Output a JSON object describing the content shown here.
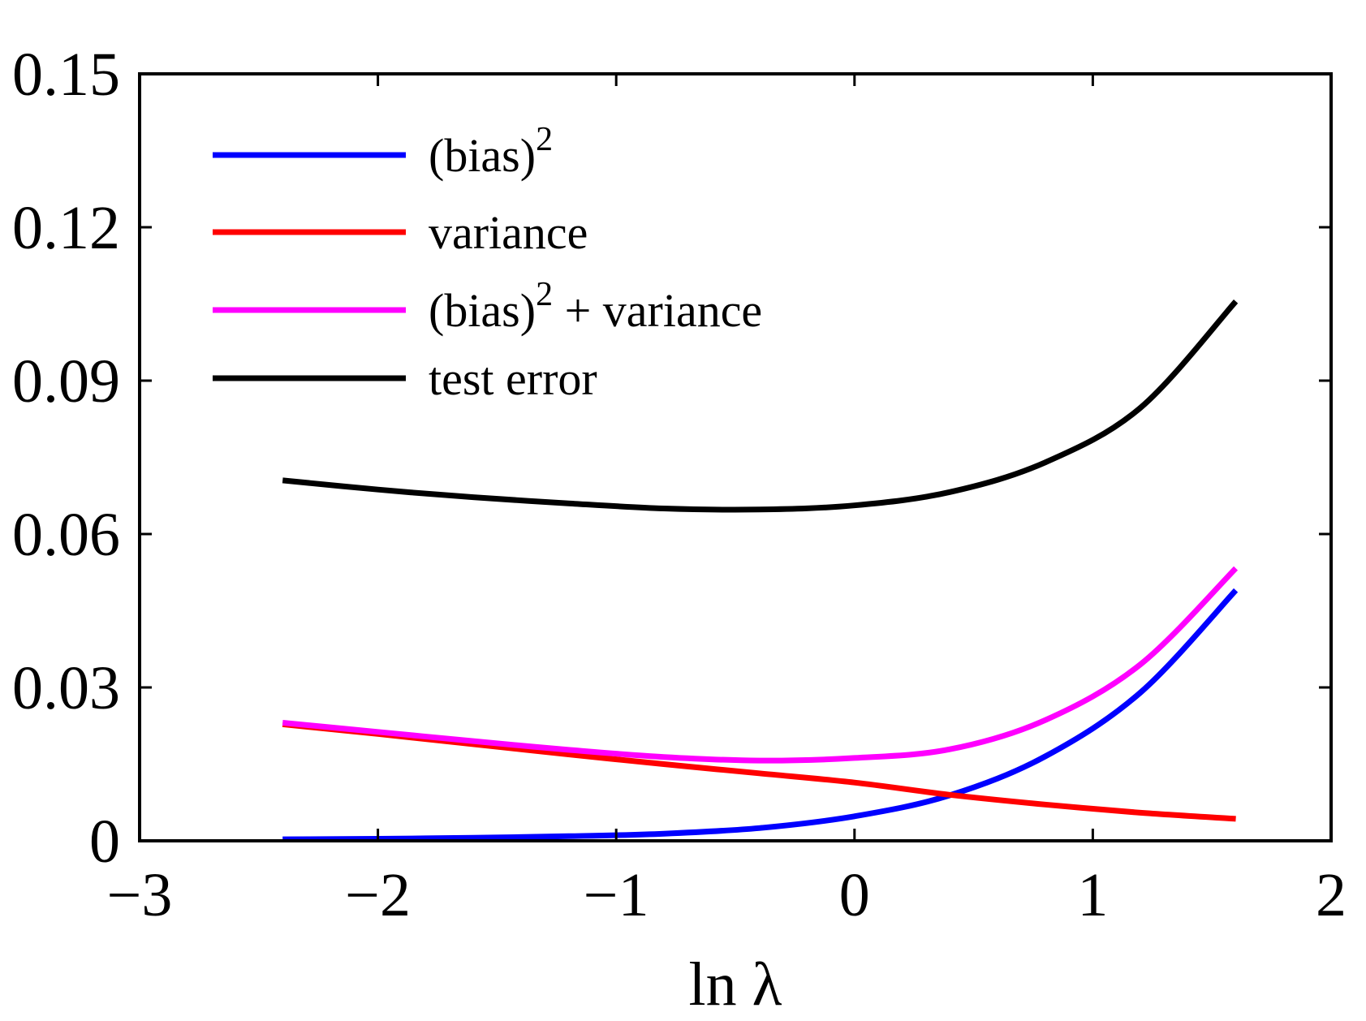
{
  "chart_data": {
    "type": "line",
    "title": "",
    "xlabel": "ln λ",
    "ylabel": "",
    "xlim": [
      -3,
      2
    ],
    "ylim": [
      0,
      0.15
    ],
    "xticks": [
      -3,
      -2,
      -1,
      0,
      1,
      2
    ],
    "xtick_labels": [
      "−3",
      "−2",
      "−1",
      "0",
      "1",
      "2"
    ],
    "yticks": [
      0,
      0.03,
      0.06,
      0.09,
      0.12,
      0.15
    ],
    "ytick_labels": [
      "0",
      "0.03",
      "0.06",
      "0.09",
      "0.12",
      "0.15"
    ],
    "grid": false,
    "legend_position": "top-left",
    "legend": [
      {
        "base": "(bias)",
        "sup": "2",
        "rest": "",
        "color": "#0000ff"
      },
      {
        "base": "variance",
        "sup": "",
        "rest": "",
        "color": "#ff0000"
      },
      {
        "base": "(bias)",
        "sup": "2",
        "rest": " + variance",
        "color": "#ff00ff"
      },
      {
        "base": "test error",
        "sup": "",
        "rest": "",
        "color": "#000000"
      }
    ],
    "x": [
      -2.4,
      -2.0,
      -1.6,
      -1.2,
      -0.8,
      -0.4,
      0.0,
      0.4,
      0.8,
      1.2,
      1.6
    ],
    "series": [
      {
        "name": "(bias)^2",
        "color": "#0000ff",
        "values": [
          0.0003,
          0.0004,
          0.0006,
          0.0009,
          0.0014,
          0.0025,
          0.0048,
          0.0089,
          0.0165,
          0.029,
          0.049
        ]
      },
      {
        "name": "variance",
        "color": "#ff0000",
        "values": [
          0.0228,
          0.0209,
          0.0189,
          0.0169,
          0.015,
          0.0132,
          0.0114,
          0.009,
          0.0071,
          0.0055,
          0.0043
        ]
      },
      {
        "name": "(bias)^2 + variance",
        "color": "#ff00ff",
        "values": [
          0.0231,
          0.0213,
          0.0195,
          0.0178,
          0.0164,
          0.0157,
          0.0162,
          0.0179,
          0.0236,
          0.0345,
          0.0533
        ]
      },
      {
        "name": "test error",
        "color": "#000000",
        "values": [
          0.0705,
          0.0687,
          0.0672,
          0.066,
          0.065,
          0.0648,
          0.0656,
          0.0682,
          0.074,
          0.0847,
          0.1055
        ]
      }
    ]
  }
}
